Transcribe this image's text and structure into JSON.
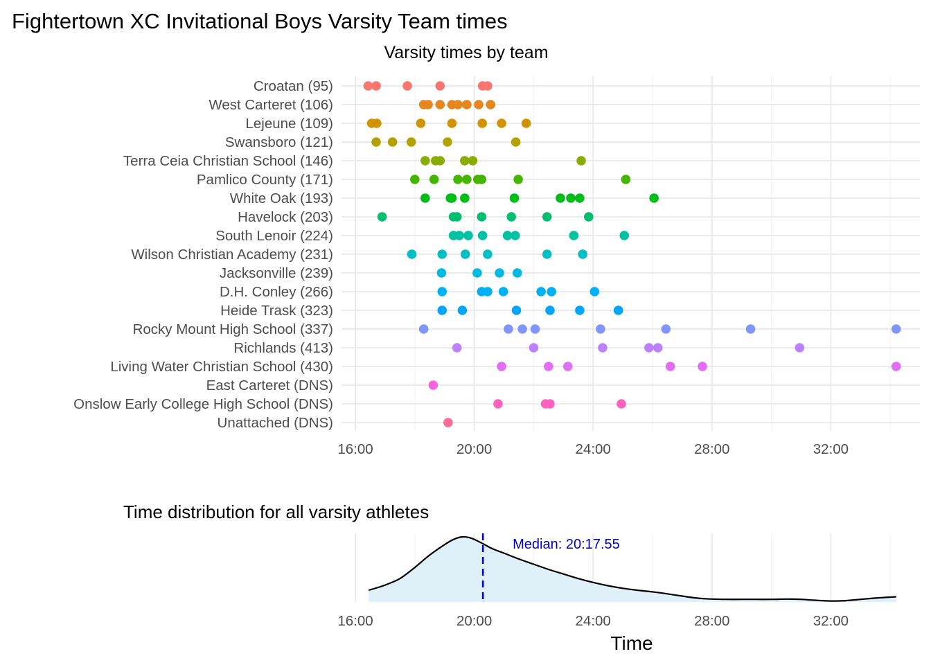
{
  "title": "Fightertown XC Invitational Boys Varsity Team times",
  "chart_data": [
    {
      "type": "scatter",
      "title": "Varsity times by team",
      "xlabel": "",
      "ylabel": "",
      "x_ticks": [
        "16:00",
        "20:00",
        "24:00",
        "28:00",
        "32:00"
      ],
      "x_tick_minutes": [
        16,
        20,
        24,
        28,
        32
      ],
      "xlim_minutes": [
        16.0,
        34.7
      ],
      "grid": true,
      "legend": "none",
      "teams": [
        {
          "name": "Croatan (95)",
          "color": "#F8766D",
          "times": [
            16.43,
            16.7,
            17.75,
            18.85,
            20.28,
            20.45
          ]
        },
        {
          "name": "West Carteret (106)",
          "color": "#E7851E",
          "times": [
            18.3,
            18.45,
            18.85,
            19.25,
            19.45,
            19.75,
            20.15,
            20.55
          ]
        },
        {
          "name": "Lejeune (109)",
          "color": "#D09400",
          "times": [
            16.55,
            16.72,
            18.2,
            19.25,
            20.27,
            20.92,
            21.75
          ]
        },
        {
          "name": "Swansboro (121)",
          "color": "#B2A100",
          "times": [
            16.7,
            17.25,
            17.88,
            19.1,
            21.4
          ]
        },
        {
          "name": "Terra Ceia Christian School (146)",
          "color": "#89AC00",
          "times": [
            18.35,
            18.7,
            18.85,
            19.68,
            19.95,
            23.6
          ]
        },
        {
          "name": "Pamlico County (171)",
          "color": "#45B500",
          "times": [
            18.0,
            18.65,
            19.45,
            19.75,
            20.12,
            20.25,
            21.48,
            25.1
          ]
        },
        {
          "name": "White Oak (193)",
          "color": "#00BC1A",
          "times": [
            18.35,
            19.2,
            19.25,
            19.68,
            21.35,
            22.9,
            23.25,
            23.55,
            26.05
          ]
        },
        {
          "name": "Havelock (203)",
          "color": "#00BE70",
          "times": [
            16.9,
            19.3,
            19.42,
            20.25,
            21.25,
            22.45,
            23.85
          ]
        },
        {
          "name": "South Lenoir (224)",
          "color": "#00C1A3",
          "times": [
            19.3,
            19.5,
            19.8,
            20.28,
            21.12,
            21.38,
            23.35,
            25.05
          ]
        },
        {
          "name": "Wilson Christian Academy (231)",
          "color": "#00BFC4",
          "times": [
            17.9,
            18.92,
            19.7,
            20.45,
            22.45,
            23.65
          ]
        },
        {
          "name": "Jacksonville (239)",
          "color": "#00BAE0",
          "times": [
            18.9,
            20.1,
            20.85,
            21.45
          ]
        },
        {
          "name": "D.H. Conley (266)",
          "color": "#00B0F6",
          "times": [
            18.92,
            20.25,
            20.45,
            20.98,
            22.25,
            22.6,
            24.05
          ]
        },
        {
          "name": "Heide Trask (323)",
          "color": "#00A5FF",
          "times": [
            18.92,
            19.6,
            21.42,
            22.55,
            23.55,
            24.85
          ]
        },
        {
          "name": "Rocky Mount High School (337)",
          "color": "#7F96FF",
          "times": [
            18.3,
            21.15,
            21.62,
            22.05,
            24.25,
            26.45,
            29.3,
            34.2
          ]
        },
        {
          "name": "Richlands (413)",
          "color": "#BC81FF",
          "times": [
            19.42,
            22.0,
            24.32,
            25.88,
            26.18,
            30.95
          ]
        },
        {
          "name": "Living Water Christian School (430)",
          "color": "#E26EF7",
          "times": [
            20.92,
            22.5,
            23.15,
            26.6,
            27.68,
            34.2
          ]
        },
        {
          "name": "East Carteret (DNS)",
          "color": "#F863DF",
          "times": [
            18.62
          ]
        },
        {
          "name": "Onslow Early College High School (DNS)",
          "color": "#FF62BC",
          "times": [
            20.8,
            22.4,
            22.55,
            24.95
          ]
        },
        {
          "name": "Unattached (DNS)",
          "color": "#FF6A98",
          "times": [
            19.12
          ]
        }
      ]
    },
    {
      "type": "area",
      "title": "Time distribution for all varsity athletes",
      "xlabel": "Time",
      "ylabel": "",
      "x_ticks": [
        "16:00",
        "20:00",
        "24:00",
        "28:00",
        "32:00"
      ],
      "x_tick_minutes": [
        16,
        20,
        24,
        28,
        32
      ],
      "xlim_minutes": [
        16.0,
        34.7
      ],
      "fill_color": "#DFF0F9",
      "line_color": "#000000",
      "density_x_minutes": [
        16.45,
        17.0,
        17.5,
        18.0,
        18.5,
        19.0,
        19.3,
        19.6,
        19.9,
        20.27,
        20.6,
        21.0,
        21.5,
        22.0,
        22.5,
        23.0,
        23.5,
        24.0,
        24.5,
        25.0,
        25.5,
        26.0,
        26.5,
        27.0,
        27.5,
        28.0,
        28.5,
        29.0,
        29.5,
        30.0,
        30.5,
        31.0,
        31.5,
        32.0,
        32.5,
        33.0,
        33.5,
        34.2
      ],
      "density_values": [
        0.18,
        0.26,
        0.36,
        0.53,
        0.72,
        0.88,
        0.96,
        1.0,
        0.98,
        0.9,
        0.82,
        0.75,
        0.66,
        0.58,
        0.5,
        0.43,
        0.36,
        0.3,
        0.25,
        0.21,
        0.18,
        0.155,
        0.125,
        0.09,
        0.06,
        0.045,
        0.04,
        0.04,
        0.04,
        0.04,
        0.045,
        0.04,
        0.025,
        0.015,
        0.02,
        0.04,
        0.06,
        0.08
      ],
      "median_minutes": 20.2925,
      "median_label": "Median: 20:17.55",
      "median_color": "#0000CC"
    }
  ]
}
